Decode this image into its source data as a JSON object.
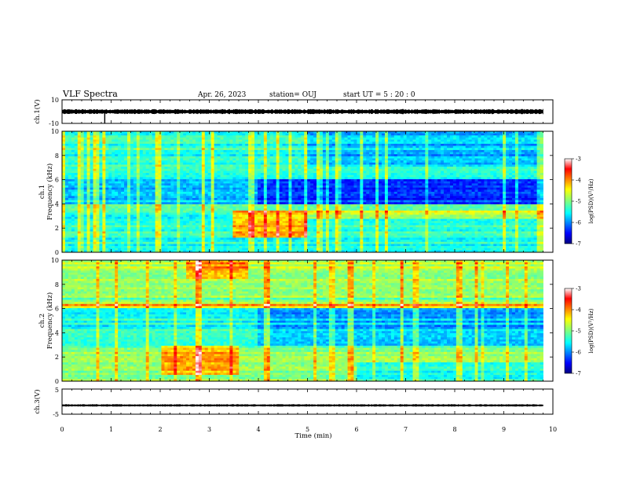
{
  "header": {
    "title": "VLF Spectra",
    "date": "Apr. 26, 2023",
    "station": "station= OUJ",
    "start": "start  UT =   5 : 20 : 0"
  },
  "chart_data": [
    {
      "id": "ch1-waveform",
      "type": "line",
      "ylabel": "ch.1(V)",
      "ylim": [
        -10,
        10
      ],
      "yticks": [
        "10",
        "-10"
      ],
      "xlim": [
        0,
        10
      ],
      "trace": {
        "center": 0,
        "amplitude_approx": 1.5,
        "spike_at_min": 0.87,
        "color": "#000000"
      }
    },
    {
      "id": "ch1-spectrogram",
      "type": "heatmap",
      "ylabel": "ch.1\nFrequency (kHz)",
      "ylim": [
        0,
        10
      ],
      "yticks": [
        "0",
        "2",
        "4",
        "6",
        "8",
        "10"
      ],
      "xlim": [
        0,
        10
      ],
      "data_end_min": 9.8,
      "colorbar": {
        "label": "log(PSD)(V²/Hz)",
        "range": [
          -7,
          -3
        ],
        "ticks": [
          "-3",
          "-4",
          "-5",
          "-6",
          "-7"
        ]
      },
      "features": [
        {
          "desc": "enhanced band",
          "freq_khz": [
            1.0,
            3.5
          ],
          "time_min": [
            3.5,
            5.0
          ]
        },
        {
          "desc": "low band",
          "freq_khz": [
            4.0,
            5.5
          ],
          "time_min": [
            4.0,
            9.8
          ]
        }
      ]
    },
    {
      "id": "ch2-spectrogram",
      "type": "heatmap",
      "ylabel": "ch.2\nFrequency (kHz)",
      "ylim": [
        0,
        10
      ],
      "yticks": [
        "0",
        "2",
        "4",
        "6",
        "8",
        "10"
      ],
      "xlim": [
        0,
        10
      ],
      "data_end_min": 9.8,
      "colorbar": {
        "label": "log(PSD)(V²/Hz)",
        "range": [
          -7,
          -3
        ],
        "ticks": [
          "-3",
          "-4",
          "-5",
          "-6",
          "-7"
        ]
      },
      "features": [
        {
          "desc": "enhanced band",
          "freq_khz": [
            0.5,
            3.0
          ],
          "time_min": [
            2.0,
            3.6
          ]
        },
        {
          "desc": "enhanced patch",
          "freq_khz": [
            8.5,
            10.0
          ],
          "time_min": [
            2.5,
            3.8
          ]
        },
        {
          "desc": "line",
          "freq_khz": [
            6.1,
            6.3
          ],
          "time_min": [
            0.0,
            9.8
          ]
        }
      ]
    },
    {
      "id": "ch3-waveform",
      "type": "line",
      "ylabel": "ch.3(V)",
      "ylim": [
        -5,
        5
      ],
      "yticks": [
        "5",
        "-5"
      ],
      "xlim": [
        0,
        10
      ],
      "trace": {
        "center": -1.5,
        "amplitude_approx": 0.3,
        "color": "#000000"
      }
    }
  ],
  "xaxis": {
    "label": "Time  (min)",
    "ticks": [
      "0",
      "1",
      "2",
      "3",
      "4",
      "5",
      "6",
      "7",
      "8",
      "9",
      "10"
    ]
  }
}
